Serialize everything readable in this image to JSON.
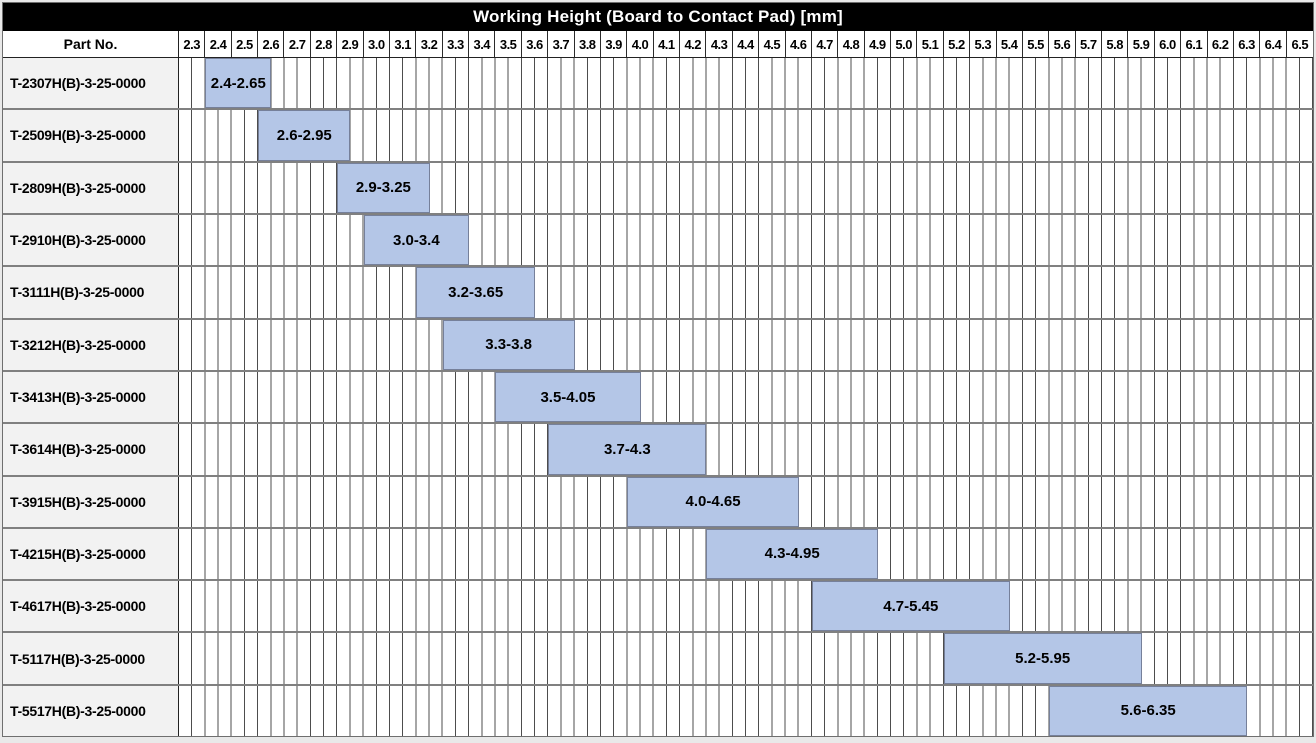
{
  "title": "Working Height (Board to Contact Pad) [mm]",
  "table": {
    "part_col_header": "Part No."
  },
  "axis": {
    "min": 2.3,
    "max": 6.6,
    "major_step": 0.1,
    "minor_step": 0.05,
    "unit": "mm",
    "tick_labels": [
      "2.3",
      "2.4",
      "2.5",
      "2.6",
      "2.7",
      "2.8",
      "2.9",
      "3.0",
      "3.1",
      "3.2",
      "3.3",
      "3.4",
      "3.5",
      "3.6",
      "3.7",
      "3.8",
      "3.9",
      "4.0",
      "4.1",
      "4.2",
      "4.3",
      "4.4",
      "4.5",
      "4.6",
      "4.7",
      "4.8",
      "4.9",
      "5.0",
      "5.1",
      "5.2",
      "5.3",
      "5.4",
      "5.5",
      "5.6",
      "5.7",
      "5.8",
      "5.9",
      "6.0",
      "6.1",
      "6.2",
      "6.3",
      "6.4",
      "6.5"
    ]
  },
  "chart_data": {
    "type": "bar",
    "variant": "horizontal-range",
    "title": "Working Height (Board to Contact Pad) [mm]",
    "xlim": [
      2.3,
      6.6
    ],
    "grid": "vertical minor gridlines every 0.05 mm",
    "legend_position": "none",
    "rows": [
      {
        "part_no": "T-2307H(B)-3-25-0000",
        "range_label": "2.4-2.65",
        "start": 2.4,
        "end": 2.65
      },
      {
        "part_no": "T-2509H(B)-3-25-0000",
        "range_label": "2.6-2.95",
        "start": 2.6,
        "end": 2.95
      },
      {
        "part_no": "T-2809H(B)-3-25-0000",
        "range_label": "2.9-3.25",
        "start": 2.9,
        "end": 3.25
      },
      {
        "part_no": "T-2910H(B)-3-25-0000",
        "range_label": "3.0-3.4",
        "start": 3.0,
        "end": 3.4
      },
      {
        "part_no": "T-3111H(B)-3-25-0000",
        "range_label": "3.2-3.65",
        "start": 3.2,
        "end": 3.65
      },
      {
        "part_no": "T-3212H(B)-3-25-0000",
        "range_label": "3.3-3.8",
        "start": 3.3,
        "end": 3.8
      },
      {
        "part_no": "T-3413H(B)-3-25-0000",
        "range_label": "3.5-4.05",
        "start": 3.5,
        "end": 4.05
      },
      {
        "part_no": "T-3614H(B)-3-25-0000",
        "range_label": "3.7-4.3",
        "start": 3.7,
        "end": 4.3
      },
      {
        "part_no": "T-3915H(B)-3-25-0000",
        "range_label": "4.0-4.65",
        "start": 4.0,
        "end": 4.65
      },
      {
        "part_no": "T-4215H(B)-3-25-0000",
        "range_label": "4.3-4.95",
        "start": 4.3,
        "end": 4.95
      },
      {
        "part_no": "T-4617H(B)-3-25-0000",
        "range_label": "4.7-5.45",
        "start": 4.7,
        "end": 5.45
      },
      {
        "part_no": "T-5117H(B)-3-25-0000",
        "range_label": "5.2-5.95",
        "start": 5.2,
        "end": 5.95
      },
      {
        "part_no": "T-5517H(B)-3-25-0000",
        "range_label": "5.6-6.35",
        "start": 5.6,
        "end": 6.35
      }
    ]
  },
  "colors": {
    "title_bg": "#000000",
    "title_text": "#ffffff",
    "bar_fill": "#b4c6e7",
    "bar_border": "#76809a",
    "part_cell_bg": "#f2f2f2",
    "grid_line": "#4d4d4d",
    "row_separator": "#808080",
    "header_border": "#222222",
    "page_bg": "#e9e9e9"
  }
}
